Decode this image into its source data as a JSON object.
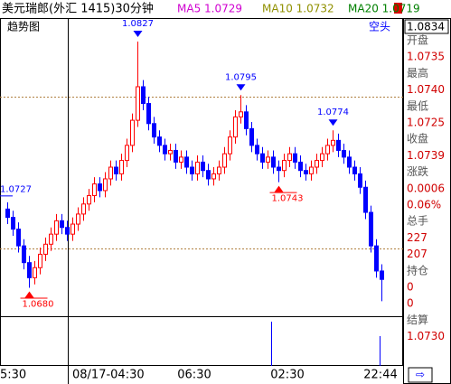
{
  "header": {
    "title": "美元瑞郎(外汇 1415)30分钟",
    "ma": [
      {
        "label": "MA5 1.0729",
        "color": "#d000d0"
      },
      {
        "label": "MA10 1.0732",
        "color": "#909000"
      },
      {
        "label": "MA20 1.0719",
        "color": "#008000"
      }
    ]
  },
  "chart_data": {
    "type": "candlestick",
    "title": "趋势图",
    "signal": "空头",
    "up_color": "#ff0000",
    "down_color": "#0000ff",
    "ylim": [
      1.0663,
      1.0841
    ],
    "candles": [
      [
        1.0727,
        1.0731,
        1.0718,
        1.0722
      ],
      [
        1.0722,
        1.0726,
        1.0711,
        1.0715
      ],
      [
        1.0715,
        1.0719,
        1.0701,
        1.0705
      ],
      [
        1.0705,
        1.0709,
        1.0691,
        1.0695
      ],
      [
        1.0695,
        1.0699,
        1.068,
        1.0686
      ],
      [
        1.0686,
        1.0696,
        1.0682,
        1.0692
      ],
      [
        1.0692,
        1.0704,
        1.0688,
        1.07
      ],
      [
        1.07,
        1.071,
        1.0696,
        1.0706
      ],
      [
        1.0706,
        1.0716,
        1.0702,
        1.0712
      ],
      [
        1.0712,
        1.0724,
        1.0708,
        1.072
      ],
      [
        1.072,
        1.0724,
        1.0712,
        1.0716
      ],
      [
        1.0716,
        1.072,
        1.0708,
        1.0712
      ],
      [
        1.0712,
        1.0722,
        1.0708,
        1.0718
      ],
      [
        1.0718,
        1.0728,
        1.0714,
        1.0724
      ],
      [
        1.0724,
        1.0734,
        1.072,
        1.073
      ],
      [
        1.073,
        1.0739,
        1.0726,
        1.0735
      ],
      [
        1.0735,
        1.0746,
        1.0731,
        1.0742
      ],
      [
        1.0742,
        1.0746,
        1.0734,
        1.0738
      ],
      [
        1.0738,
        1.0749,
        1.0734,
        1.0745
      ],
      [
        1.0745,
        1.0756,
        1.0741,
        1.0752
      ],
      [
        1.0752,
        1.0756,
        1.0744,
        1.0748
      ],
      [
        1.0748,
        1.076,
        1.0744,
        1.0756
      ],
      [
        1.0756,
        1.0769,
        1.0752,
        1.0765
      ],
      [
        1.0765,
        1.0784,
        1.0761,
        1.078
      ],
      [
        1.078,
        1.0827,
        1.0776,
        1.08
      ],
      [
        1.08,
        1.0804,
        1.0786,
        1.079
      ],
      [
        1.079,
        1.0794,
        1.0774,
        1.0778
      ],
      [
        1.0778,
        1.0782,
        1.0766,
        1.077
      ],
      [
        1.077,
        1.0774,
        1.0761,
        1.0765
      ],
      [
        1.0765,
        1.0769,
        1.0756,
        1.076
      ],
      [
        1.076,
        1.0766,
        1.0756,
        1.0762
      ],
      [
        1.0762,
        1.0766,
        1.0751,
        1.0755
      ],
      [
        1.0755,
        1.0762,
        1.0751,
        1.0758
      ],
      [
        1.0758,
        1.0762,
        1.0748,
        1.0752
      ],
      [
        1.0752,
        1.0756,
        1.0744,
        1.0748
      ],
      [
        1.0748,
        1.0759,
        1.0744,
        1.0755
      ],
      [
        1.0755,
        1.0759,
        1.0746,
        1.075
      ],
      [
        1.075,
        1.0754,
        1.0741,
        1.0745
      ],
      [
        1.0745,
        1.0752,
        1.0741,
        1.0748
      ],
      [
        1.0748,
        1.0756,
        1.0744,
        1.0752
      ],
      [
        1.0752,
        1.0764,
        1.0748,
        1.076
      ],
      [
        1.076,
        1.0774,
        1.0756,
        1.077
      ],
      [
        1.077,
        1.0786,
        1.0766,
        1.0782
      ],
      [
        1.0782,
        1.0795,
        1.0778,
        1.0785
      ],
      [
        1.0785,
        1.0789,
        1.0771,
        1.0775
      ],
      [
        1.0775,
        1.0779,
        1.0761,
        1.0765
      ],
      [
        1.0765,
        1.0769,
        1.0756,
        1.076
      ],
      [
        1.076,
        1.0764,
        1.0751,
        1.0755
      ],
      [
        1.0755,
        1.0762,
        1.0751,
        1.0758
      ],
      [
        1.0758,
        1.0762,
        1.0748,
        1.0752
      ],
      [
        1.0752,
        1.0756,
        1.0743,
        1.075
      ],
      [
        1.075,
        1.076,
        1.0746,
        1.0756
      ],
      [
        1.0756,
        1.0764,
        1.0752,
        1.076
      ],
      [
        1.076,
        1.0764,
        1.0751,
        1.0755
      ],
      [
        1.0755,
        1.0759,
        1.0746,
        1.075
      ],
      [
        1.075,
        1.0754,
        1.0744,
        1.0748
      ],
      [
        1.0748,
        1.0756,
        1.0744,
        1.0752
      ],
      [
        1.0752,
        1.076,
        1.0748,
        1.0756
      ],
      [
        1.0756,
        1.0764,
        1.0752,
        1.076
      ],
      [
        1.076,
        1.0769,
        1.0756,
        1.0765
      ],
      [
        1.0765,
        1.0774,
        1.0761,
        1.0768
      ],
      [
        1.0768,
        1.0772,
        1.0758,
        1.0762
      ],
      [
        1.0762,
        1.0766,
        1.0754,
        1.0758
      ],
      [
        1.0758,
        1.0762,
        1.0748,
        1.0752
      ],
      [
        1.0752,
        1.0756,
        1.0744,
        1.0748
      ],
      [
        1.0748,
        1.0752,
        1.0736,
        1.074
      ],
      [
        1.074,
        1.0744,
        1.0721,
        1.0725
      ],
      [
        1.0725,
        1.0729,
        1.0701,
        1.0705
      ],
      [
        1.0705,
        1.0709,
        1.0686,
        1.069
      ],
      [
        1.069,
        1.0694,
        1.0672,
        1.0685
      ]
    ],
    "annotations": [
      "1.0827",
      "1.0795",
      "1.0774",
      "1.0727",
      "1.0680",
      "1.0743"
    ],
    "x_labels": [
      "5:30",
      "08/17-04:30",
      "06:30",
      "02:30",
      "22:44"
    ]
  },
  "panel": {
    "top": "1.0834",
    "rows": [
      {
        "label": "开盘",
        "values": [
          "1.0735"
        ]
      },
      {
        "label": "最高",
        "values": [
          "1.0740"
        ]
      },
      {
        "label": "最低",
        "values": [
          "1.0725"
        ]
      },
      {
        "label": "收盘",
        "values": [
          "1.0739"
        ]
      },
      {
        "label": "涨跌",
        "values": [
          "0.0006",
          "0.06%"
        ]
      },
      {
        "label": "总手",
        "values": [
          "227",
          "207"
        ]
      },
      {
        "label": "持仓",
        "values": [
          "0",
          "0"
        ]
      },
      {
        "label": "结算",
        "values": [
          "1.0730"
        ]
      }
    ]
  }
}
